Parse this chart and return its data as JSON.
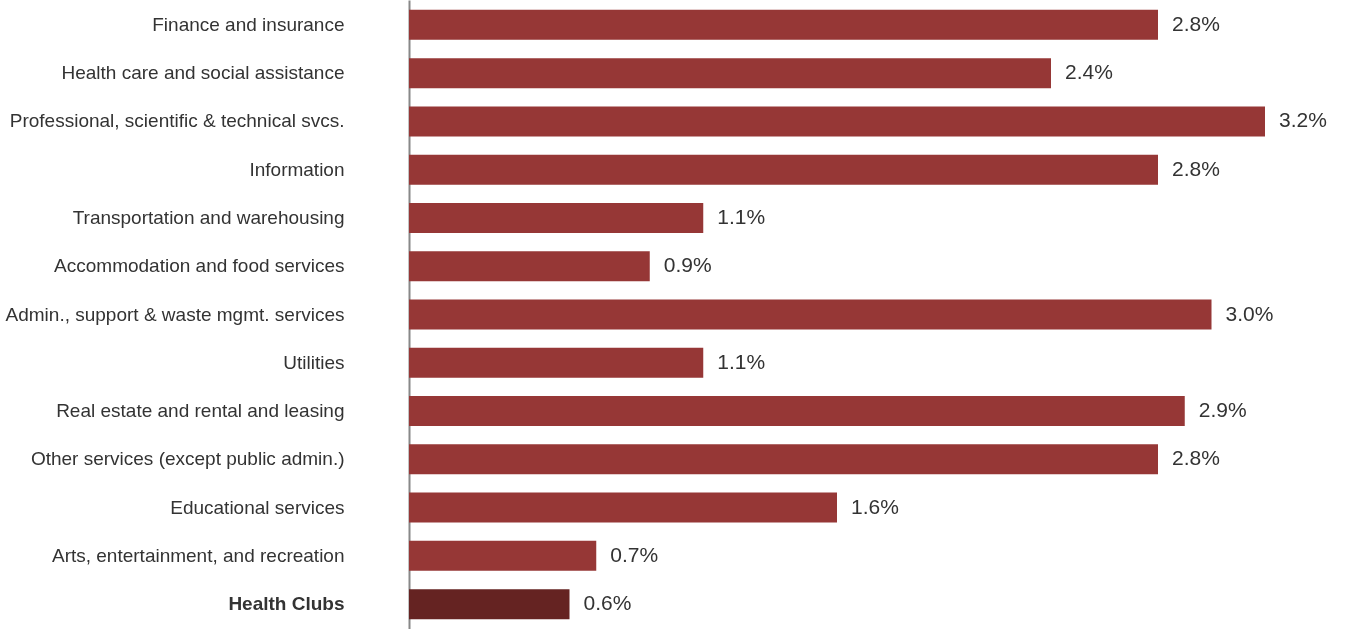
{
  "chart_data": {
    "type": "bar",
    "orientation": "horizontal",
    "value_labels": [
      "2.8%",
      "2.4%",
      "3.2%",
      "2.8%",
      "1.1%",
      "0.9%",
      "3.0%",
      "1.1%",
      "2.9%",
      "2.8%",
      "1.6%",
      "0.7%",
      "0.6%"
    ],
    "categories": [
      "Finance and insurance",
      "Health care and social assistance",
      "Professional, scientific & technical svcs.",
      "Information",
      "Transportation and warehousing",
      "Accommodation and food services",
      "Admin., support & waste mgmt. services",
      "Utilities",
      "Real estate and rental and leasing",
      "Other services (except public admin.)",
      "Educational services",
      "Arts, entertainment, and recreation",
      "Health Clubs"
    ],
    "values": [
      2.8,
      2.4,
      3.2,
      2.8,
      1.1,
      0.9,
      3.0,
      1.1,
      2.9,
      2.8,
      1.6,
      0.7,
      0.6
    ],
    "colors": [
      "#963736",
      "#963736",
      "#963736",
      "#963736",
      "#963736",
      "#963736",
      "#963736",
      "#963736",
      "#963736",
      "#963736",
      "#963736",
      "#963736",
      "#652322"
    ]
  }
}
